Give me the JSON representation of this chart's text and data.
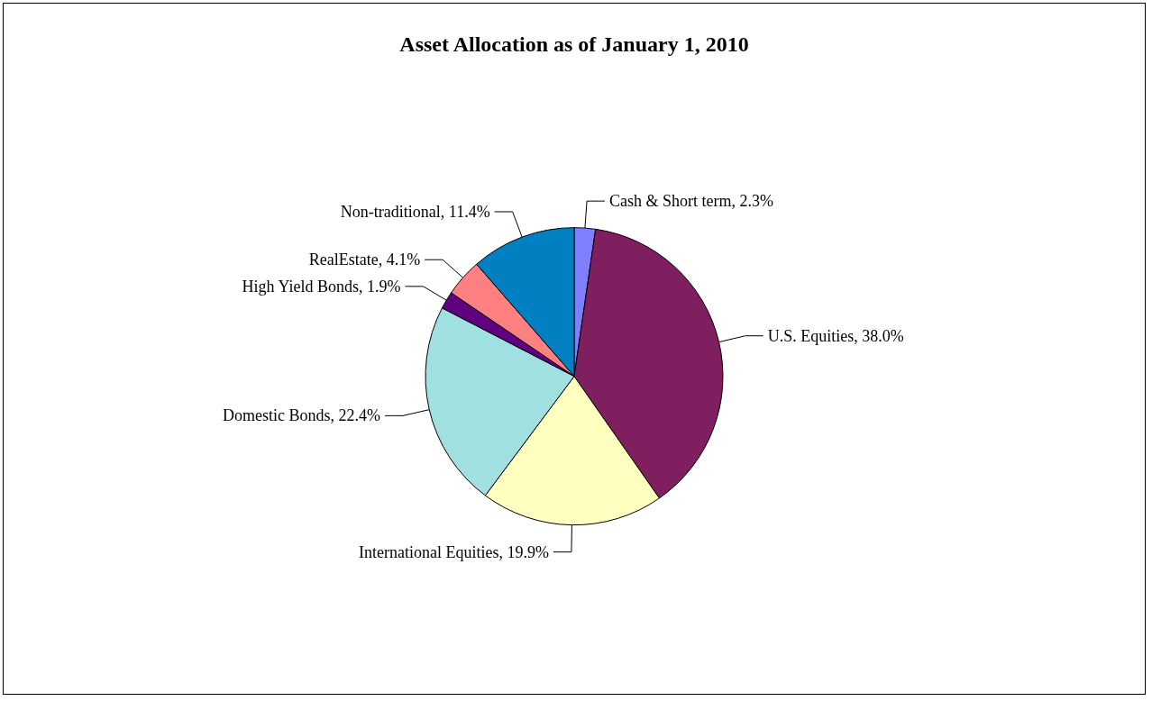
{
  "chart_data": {
    "type": "pie",
    "title": "Asset Allocation as of January 1, 2010",
    "categories": [
      "Cash & Short term",
      "U.S. Equities",
      "International Equities",
      "Domestic Bonds",
      "High Yield Bonds",
      "RealEstate",
      "Non-traditional"
    ],
    "value_labels": [
      "2.3%",
      "38.0%",
      "19.9%",
      "22.4%",
      "1.9%",
      "4.1%",
      "11.4%"
    ],
    "values": [
      2.3,
      38.0,
      19.9,
      22.4,
      1.9,
      4.1,
      11.4
    ],
    "colors": [
      "#8080ff",
      "#7f1f5f",
      "#ffffc0",
      "#a0e0e0",
      "#600080",
      "#ff8080",
      "#0080c0"
    ],
    "legend": false
  }
}
